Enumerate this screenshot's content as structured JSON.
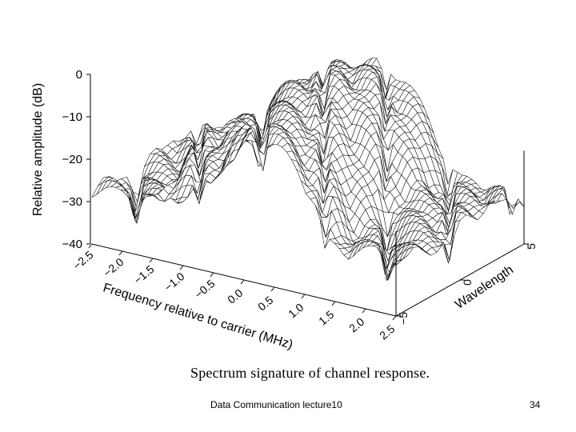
{
  "slide": {
    "footer_left": "Data Communication lecture10",
    "page_number": "34"
  },
  "chart_data": {
    "type": "surface-3d",
    "title": "Spectrum signature of channel response.",
    "zlabel": "Relative amplitude (dB)",
    "xlabel": "Frequency relative to carrier (MHz)",
    "ylabel": "Wavelength",
    "z_ticks": [
      "0",
      "−10",
      "−20",
      "−30",
      "−40"
    ],
    "z_tick_values": [
      0,
      -10,
      -20,
      -30,
      -40
    ],
    "x_ticks": [
      "−2.5",
      "−2.0",
      "−1.5",
      "−1.0",
      "−0.5",
      "0.0",
      "0.5",
      "1.0",
      "1.5",
      "2.0",
      "2.5"
    ],
    "x_tick_values": [
      -2.5,
      -2.0,
      -1.5,
      -1.0,
      -0.5,
      0.0,
      0.5,
      1.0,
      1.5,
      2.0,
      2.5
    ],
    "y_ticks": [
      "−5",
      "0",
      "5"
    ],
    "y_tick_values": [
      -5,
      0,
      5
    ],
    "xlim": [
      -2.5,
      2.5
    ],
    "ylim": [
      -5,
      5
    ],
    "zlim": [
      -40,
      0
    ],
    "surface_description": {
      "peak_level_db": -3,
      "edge_level_db": -20,
      "main_lobe_halfwidth_mhz": 1.4,
      "ripple_notches_db": -28
    },
    "colors": {
      "mesh_line": "#111111",
      "surface_fill": "#ffffff",
      "axis": "#000000"
    }
  }
}
